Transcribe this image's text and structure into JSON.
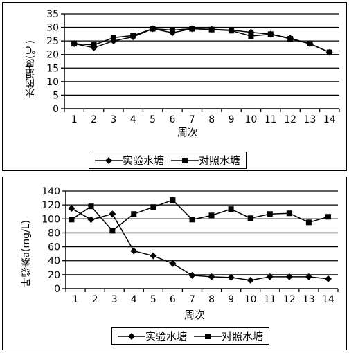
{
  "chart_data": [
    {
      "type": "line",
      "ylabel": "水的温度(℃)",
      "xlabel": "周次",
      "ylim": [
        0,
        35
      ],
      "yticks": [
        "0",
        "5",
        "10",
        "15",
        "20",
        "25",
        "30",
        "35"
      ],
      "xlim": [
        0,
        14
      ],
      "xticks": [
        "1",
        "2",
        "3",
        "4",
        "5",
        "6",
        "7",
        "8",
        "9",
        "10",
        "11",
        "12",
        "13",
        "14"
      ],
      "grid": "horizontal",
      "legend_position": "bottom",
      "series": [
        {
          "name": "实验水塘",
          "marker": "diamond",
          "x": [
            0.5,
            1.5,
            2.5,
            3.5,
            4.5,
            5.5,
            6.5,
            7.5,
            8.5,
            9.5,
            10.5,
            11.5,
            12.5,
            13.5
          ],
          "y": [
            24,
            22.5,
            25,
            26.5,
            29.5,
            28,
            29.5,
            29.3,
            29,
            28.2,
            27.5,
            26,
            24,
            20.8
          ]
        },
        {
          "name": "对照水塘",
          "marker": "square",
          "x": [
            0.5,
            1.5,
            2.5,
            3.5,
            4.5,
            5.5,
            6.5,
            7.5,
            8.5,
            9.5,
            10.5,
            11.5,
            12.5,
            13.5
          ],
          "y": [
            24,
            23.5,
            26.2,
            27,
            29.5,
            29,
            29.5,
            29.2,
            28.8,
            26.8,
            27.5,
            25.8,
            24,
            20.8
          ]
        }
      ]
    },
    {
      "type": "line",
      "ylabel": "叶绿素a(mg/L)",
      "xlabel": "周次",
      "ylim": [
        0,
        140
      ],
      "yticks": [
        "0",
        "20",
        "40",
        "60",
        "80",
        "100",
        "120",
        "140"
      ],
      "xlim": [
        0,
        14
      ],
      "xticks": [
        "1",
        "2",
        "3",
        "4",
        "5",
        "6",
        "7",
        "8",
        "9",
        "10",
        "11",
        "12",
        "13",
        "14"
      ],
      "grid": "horizontal",
      "legend_position": "bottom",
      "series": [
        {
          "name": "实验水塘",
          "marker": "diamond",
          "x": [
            0.3,
            1.3,
            2.4,
            3.5,
            4.5,
            5.5,
            6.5,
            7.5,
            8.5,
            9.5,
            10.5,
            11.5,
            12.5,
            13.5
          ],
          "y": [
            115,
            99,
            107,
            54,
            47,
            36,
            19,
            17,
            16,
            12,
            17,
            17,
            17,
            14
          ]
        },
        {
          "name": "对照水塘",
          "marker": "square",
          "x": [
            0.3,
            1.3,
            2.4,
            3.5,
            4.5,
            5.5,
            6.5,
            7.5,
            8.5,
            9.5,
            10.5,
            11.5,
            12.5,
            13.5
          ],
          "y": [
            99,
            118,
            83,
            107,
            117,
            127,
            99,
            105,
            114,
            101,
            107,
            108,
            95,
            103
          ]
        }
      ]
    }
  ]
}
